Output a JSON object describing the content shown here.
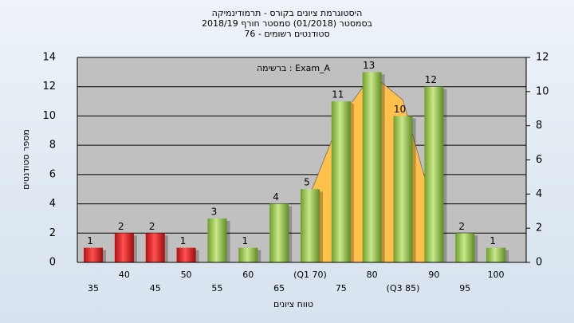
{
  "chart_data": {
    "type": "bar",
    "title": [
      "היסטוגרמת ציונים בקורס - תרמודינמיקה",
      "בסמסטר  (01/2018)  סמסטר חורף 2018/19",
      "סטודנטים רשומים - 76"
    ],
    "annotation": "ברשימה : Exam_A",
    "y_label": "מספר סטודנטים",
    "x_label": "טווח ציונים",
    "categories": [
      "35",
      "40",
      "45",
      "50",
      "55",
      "60",
      "65",
      "(Q1 70)",
      "75",
      "80",
      "(Q3 85)",
      "90",
      "95",
      "100"
    ],
    "series": [
      {
        "values": [
          1,
          2,
          2,
          1,
          3,
          1,
          4,
          5,
          11,
          13,
          10,
          12,
          2,
          1
        ],
        "colors": [
          "#e02020",
          "#e02020",
          "#e02020",
          "#e02020",
          "#8cc63f",
          "#8cc63f",
          "#8cc63f",
          "#8cc63f",
          "#8cc63f",
          "#8cc63f",
          "#8cc63f",
          "#8cc63f",
          "#8cc63f",
          "#8cc63f"
        ]
      },
      {
        "type": "area",
        "axis": "y2",
        "color": "#ffc04c",
        "values": [
          null,
          null,
          null,
          null,
          null,
          null,
          null,
          4,
          8.5,
          11,
          9.5,
          3,
          null,
          null
        ]
      }
    ],
    "ylim": [
      0,
      14
    ],
    "yticks": [
      0,
      2,
      4,
      6,
      8,
      10,
      12,
      14
    ],
    "y2lim": [
      0,
      12
    ],
    "y2ticks": [
      0,
      2,
      4,
      6,
      8,
      10,
      12
    ],
    "grid": true
  }
}
